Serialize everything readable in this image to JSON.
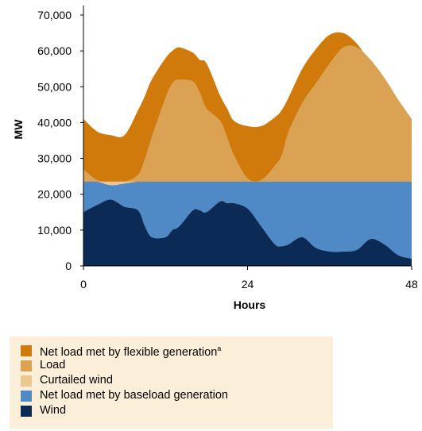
{
  "chart_data": {
    "type": "area",
    "xlabel": "Hours",
    "ylabel": "MW",
    "xlim": [
      0,
      48
    ],
    "ylim": [
      0,
      70000
    ],
    "x_ticks": [
      "0",
      "24",
      "48"
    ],
    "x_tick_values": [
      0,
      24,
      48
    ],
    "y_ticks": [
      "0",
      "10,000",
      "20,000",
      "30,000",
      "40,000",
      "50,000",
      "60,000",
      "70,000"
    ],
    "y_tick_values": [
      0,
      10000,
      20000,
      30000,
      40000,
      50000,
      60000,
      70000
    ],
    "grid": false,
    "legend_position": "bottom",
    "baseload_level": 23500,
    "hours": [
      0,
      2,
      4,
      6,
      8,
      9,
      10,
      12,
      13,
      14,
      16,
      17,
      18,
      20,
      21,
      22,
      24,
      26,
      28,
      29,
      30,
      32,
      34,
      36,
      38,
      40,
      42,
      44,
      46,
      48
    ],
    "series": [
      {
        "name": "Net load met by flexible generation",
        "superscript": "a",
        "color": "#cf7a0a",
        "values": [
          41000,
          37500,
          36500,
          36500,
          43500,
          47500,
          52000,
          58000,
          60000,
          61000,
          59500,
          57500,
          56500,
          47500,
          44000,
          40500,
          39000,
          39000,
          41500,
          43500,
          47000,
          55000,
          60500,
          64500,
          65000,
          62000,
          56500,
          51000,
          44000,
          39000
        ]
      },
      {
        "name": "Load",
        "color": "#dca253",
        "values": [
          27000,
          24000,
          22500,
          23000,
          25500,
          30000,
          36000,
          47000,
          51000,
          52000,
          51500,
          48500,
          44000,
          40500,
          36000,
          31000,
          24500,
          24000,
          28000,
          31000,
          37500,
          45500,
          51000,
          56500,
          61000,
          61000,
          57500,
          52500,
          46500,
          41000
        ]
      },
      {
        "name": "Curtailed wind",
        "color": "#ecc88f",
        "values": [
          23500,
          23500,
          23500,
          23500,
          23500,
          23500,
          23500,
          23500,
          23500,
          23500,
          23500,
          23500,
          23500,
          23500,
          23500,
          23500,
          23500,
          23500,
          23500,
          23500,
          23500,
          23500,
          23500,
          23500,
          23500,
          23500,
          23500,
          23500,
          23500,
          23500
        ]
      },
      {
        "name": "Net load met by baseload generation",
        "color": "#4f89c6",
        "values": [
          23500,
          23500,
          23500,
          23500,
          23500,
          23500,
          23500,
          23500,
          23500,
          23500,
          23500,
          23500,
          23500,
          23500,
          23500,
          23500,
          23500,
          23500,
          23500,
          23500,
          23500,
          23500,
          23500,
          23500,
          23500,
          23500,
          23500,
          23500,
          23500,
          23500
        ]
      },
      {
        "name": "Wind",
        "color": "#0b2a55",
        "values": [
          15000,
          17000,
          18500,
          16500,
          15500,
          11000,
          8000,
          8000,
          10000,
          11000,
          15500,
          15500,
          15000,
          18000,
          17500,
          17500,
          16000,
          11000,
          6000,
          5500,
          6000,
          8000,
          5000,
          4000,
          4000,
          4500,
          7500,
          6000,
          3000,
          2000
        ]
      }
    ]
  }
}
